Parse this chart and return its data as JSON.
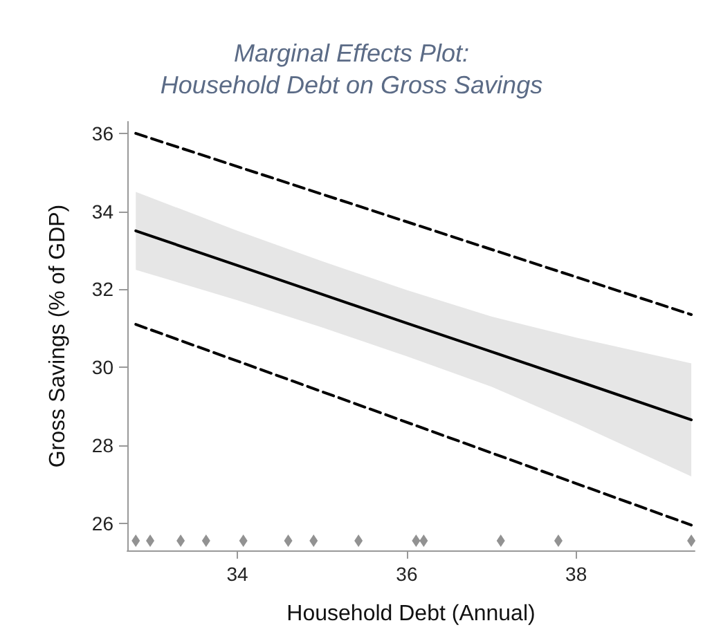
{
  "chart_data": {
    "type": "line",
    "title": "Marginal Effects Plot:\nHousehold Debt on Gross Savings",
    "xlabel": "Household Debt (Annual)",
    "ylabel": "Gross Savings (% of GDP)",
    "xlim": [
      32.7,
      39.4
    ],
    "xticks": [
      34,
      36,
      38
    ],
    "ylim": [
      25.3,
      36.3
    ],
    "yticks": [
      26,
      28,
      30,
      32,
      34,
      36
    ],
    "grid": false,
    "marker": "none",
    "series": [
      {
        "color": "#000000",
        "line_style": "solid",
        "x": [
          32.8,
          34,
          35,
          36,
          37,
          38,
          39.36
        ],
        "values": [
          33.5,
          32.61,
          31.87,
          31.13,
          30.4,
          29.66,
          28.65
        ],
        "lower": [
          32.5,
          31.72,
          31.02,
          30.28,
          29.5,
          28.56,
          27.2
        ],
        "upper": [
          34.5,
          33.5,
          32.72,
          31.98,
          31.3,
          30.76,
          30.1
        ]
      },
      {
        "color": "#000000",
        "line_style": "dashed",
        "x": [
          32.8,
          39.36
        ],
        "values": [
          36.0,
          31.35
        ]
      },
      {
        "color": "#000000",
        "line_style": "dashed",
        "x": [
          32.8,
          39.36
        ],
        "values": [
          31.1,
          25.95
        ]
      },
      {
        "type": "scatter",
        "marker": "diamond",
        "color": "#777777",
        "x": [
          32.8,
          32.97,
          33.33,
          33.63,
          34.07,
          34.6,
          34.9,
          35.43,
          36.11,
          36.2,
          37.11,
          37.79,
          39.36
        ],
        "values": [
          25.55,
          25.55,
          25.55,
          25.55,
          25.55,
          25.55,
          25.55,
          25.55,
          25.55,
          25.55,
          25.55,
          25.55,
          25.55
        ]
      }
    ]
  }
}
